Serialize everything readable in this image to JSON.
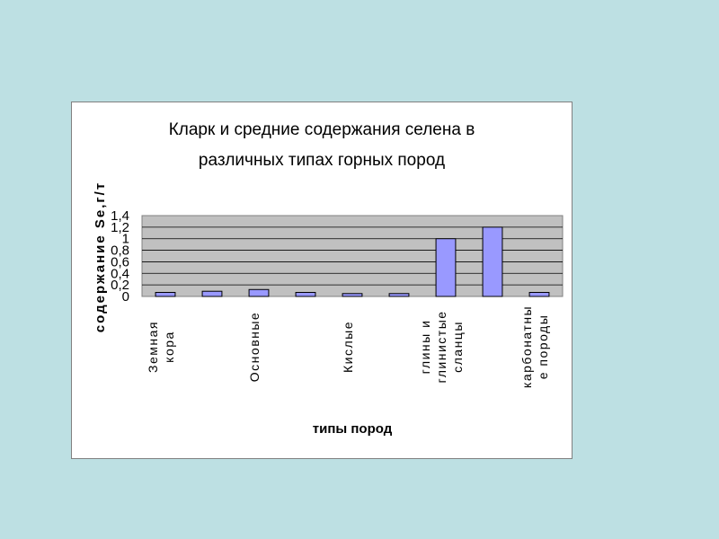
{
  "chart_data": {
    "type": "bar",
    "title_lines": [
      "Кларк и средние содержания селена в",
      "различных типах горных пород"
    ],
    "xlabel": "типы пород",
    "ylabel": "содержание Se,г/т",
    "ylim": [
      0,
      1.4
    ],
    "yticks": [
      "0",
      "0,2",
      "0,4",
      "0,6",
      "0,8",
      "1",
      "1,2",
      "1,4"
    ],
    "grid": true,
    "legend": "none",
    "categories": [
      [
        "Земная",
        "кора"
      ],
      [],
      [
        "Основные"
      ],
      [],
      [
        "Кислые"
      ],
      [],
      [
        "глины и",
        "глинистые",
        "сланцы"
      ],
      [],
      [
        "карбонатны",
        "е породы"
      ]
    ],
    "values": [
      0.07,
      0.09,
      0.12,
      0.07,
      0.05,
      0.05,
      1.0,
      1.2,
      0.07
    ],
    "bar_color": "#9999ff",
    "plot_bg": "#c0c0c0"
  }
}
